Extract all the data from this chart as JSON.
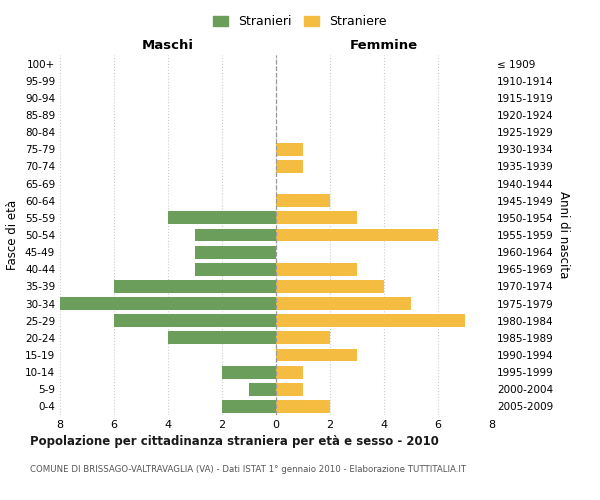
{
  "age_groups": [
    "0-4",
    "5-9",
    "10-14",
    "15-19",
    "20-24",
    "25-29",
    "30-34",
    "35-39",
    "40-44",
    "45-49",
    "50-54",
    "55-59",
    "60-64",
    "65-69",
    "70-74",
    "75-79",
    "80-84",
    "85-89",
    "90-94",
    "95-99",
    "100+"
  ],
  "birth_years": [
    "2005-2009",
    "2000-2004",
    "1995-1999",
    "1990-1994",
    "1985-1989",
    "1980-1984",
    "1975-1979",
    "1970-1974",
    "1965-1969",
    "1960-1964",
    "1955-1959",
    "1950-1954",
    "1945-1949",
    "1940-1944",
    "1935-1939",
    "1930-1934",
    "1925-1929",
    "1920-1924",
    "1915-1919",
    "1910-1914",
    "≤ 1909"
  ],
  "maschi": [
    2,
    1,
    2,
    0,
    4,
    6,
    8,
    6,
    3,
    3,
    3,
    4,
    0,
    0,
    0,
    0,
    0,
    0,
    0,
    0,
    0
  ],
  "femmine": [
    2,
    1,
    1,
    3,
    2,
    7,
    5,
    4,
    3,
    0,
    6,
    3,
    2,
    0,
    1,
    1,
    0,
    0,
    0,
    0,
    0
  ],
  "male_color": "#6a9e5a",
  "female_color": "#f5bc42",
  "background_color": "#ffffff",
  "grid_color": "#cccccc",
  "center_line_color": "#999999",
  "title": "Popolazione per cittadinanza straniera per età e sesso - 2010",
  "subtitle": "COMUNE DI BRISSAGO-VALTRAVAGLIA (VA) - Dati ISTAT 1° gennaio 2010 - Elaborazione TUTTITALIA.IT",
  "xlabel_left": "Maschi",
  "xlabel_right": "Femmine",
  "ylabel_left": "Fasce di età",
  "ylabel_right": "Anni di nascita",
  "legend_male": "Stranieri",
  "legend_female": "Straniere",
  "xlim": 8,
  "bar_height": 0.75
}
